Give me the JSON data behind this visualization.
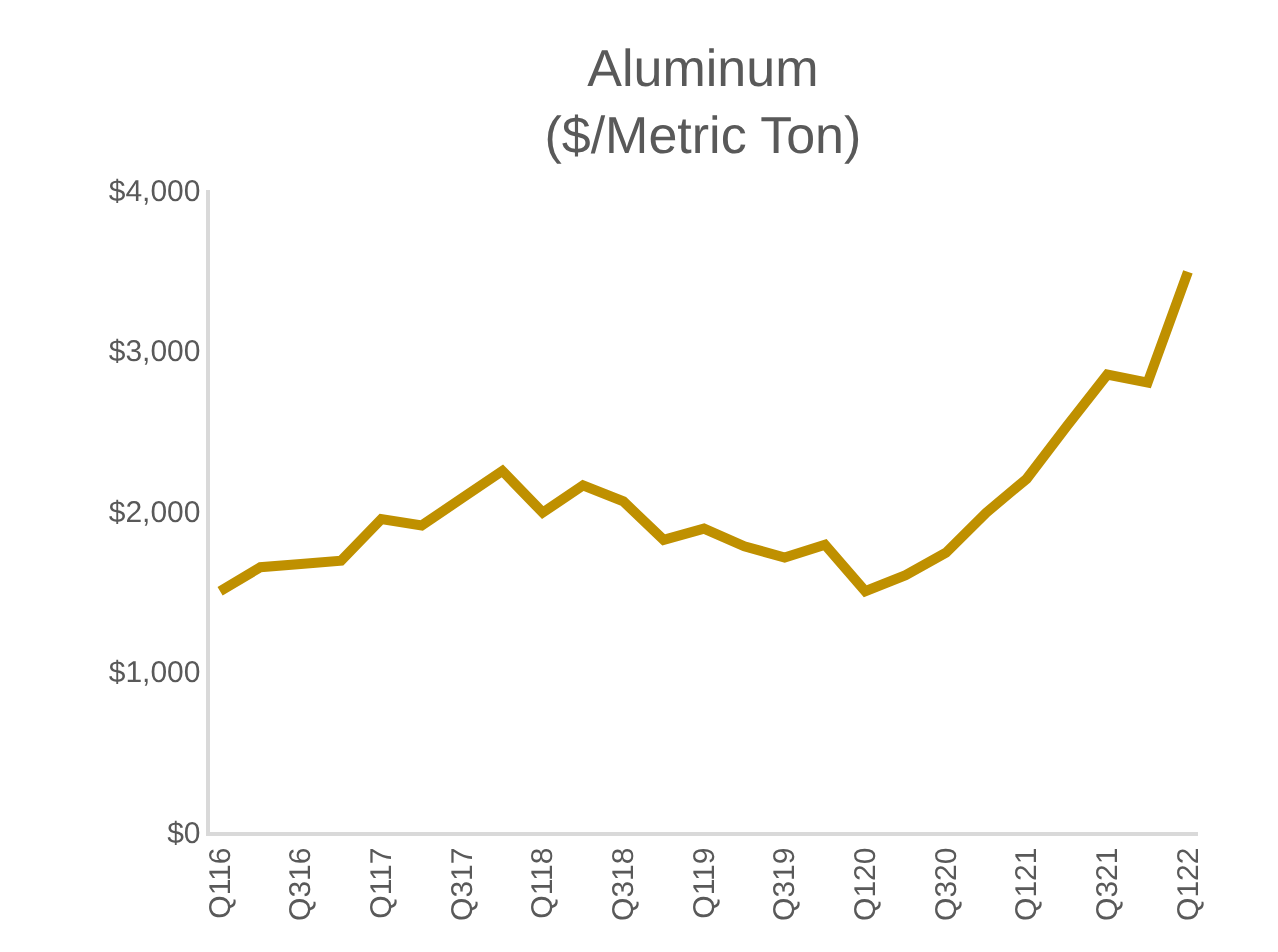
{
  "chart_data": {
    "type": "line",
    "title": "Aluminum\n($/Metric Ton)",
    "categories": [
      "Q116",
      null,
      "Q316",
      null,
      "Q117",
      null,
      "Q317",
      null,
      "Q118",
      null,
      "Q318",
      null,
      "Q119",
      null,
      "Q319",
      null,
      "Q120",
      null,
      "Q320",
      null,
      "Q121",
      null,
      "Q321",
      null,
      "Q122"
    ],
    "series": [
      {
        "color": "#bf9000",
        "values": [
          1500,
          1650,
          1670,
          1690,
          1950,
          1910,
          2080,
          2250,
          1990,
          2160,
          2060,
          1820,
          1890,
          1780,
          1710,
          1790,
          1500,
          1600,
          1740,
          1990,
          2200,
          2530,
          2850,
          2800,
          3490
        ]
      }
    ],
    "ylim": [
      0,
      4000
    ],
    "yticks": [
      {
        "value": 0,
        "label": "$0"
      },
      {
        "value": 1000,
        "label": "$1,000"
      },
      {
        "value": 2000,
        "label": "$2,000"
      },
      {
        "value": 3000,
        "label": "$3,000"
      },
      {
        "value": 4000,
        "label": "$4,000"
      }
    ],
    "marker": "none",
    "line_style": "solid"
  }
}
